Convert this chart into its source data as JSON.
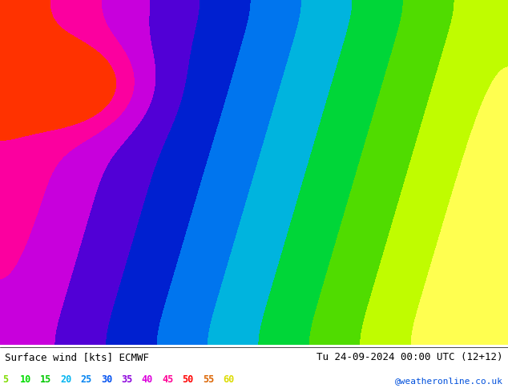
{
  "title_left": "Surface wind [kts] ECMWF",
  "title_right": "Tu 24-09-2024 00:00 UTC (12+12)",
  "credit": "@weatheronline.co.uk",
  "legend_values": [
    5,
    10,
    15,
    20,
    25,
    30,
    35,
    40,
    45,
    50,
    55,
    60
  ],
  "legend_colors": [
    "#7fdc00",
    "#00dc00",
    "#00c800",
    "#00b4f0",
    "#0082f0",
    "#0050f0",
    "#8c00dc",
    "#dc00dc",
    "#ff0096",
    "#ff0000",
    "#dc6400",
    "#dcdc00"
  ],
  "colormap_colors": [
    "#ffff00",
    "#c8ff00",
    "#96ff00",
    "#64ff00",
    "#00ff00",
    "#00e600",
    "#00c800",
    "#00aaff",
    "#0078ff",
    "#0050ff",
    "#7800dc",
    "#dc00dc",
    "#ff0096",
    "#ff0000",
    "#dc6400"
  ],
  "background_color": "#ffffff",
  "map_bg": "#e8e8e8",
  "figsize": [
    6.34,
    4.9
  ],
  "dpi": 100
}
